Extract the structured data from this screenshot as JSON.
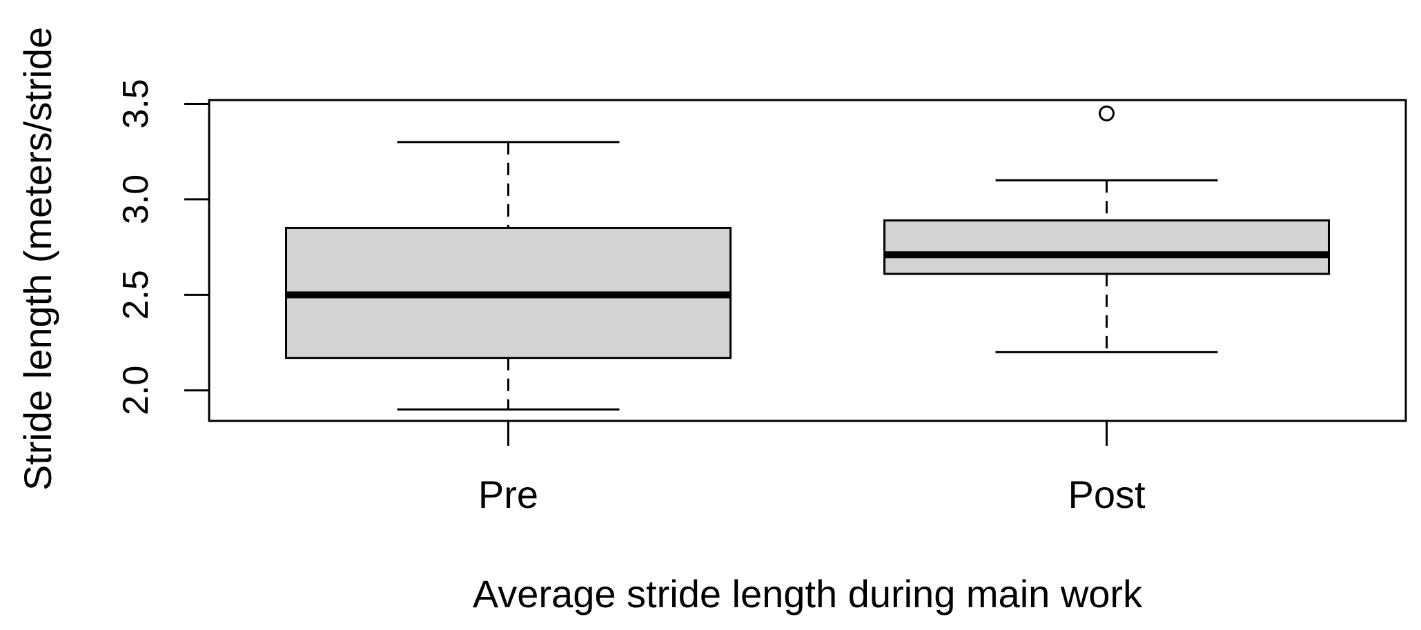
{
  "chart_data": {
    "type": "boxplot",
    "title": "",
    "xlabel": "Average stride length during main work",
    "ylabel": "Stride length (meters/stride",
    "ylim": [
      1.84,
      3.52
    ],
    "yticks": [
      2.0,
      2.5,
      3.0,
      3.5
    ],
    "ytick_labels": [
      "2.0",
      "2.5",
      "3.0",
      "3.5"
    ],
    "grid": false,
    "categories": [
      "Pre",
      "Post"
    ],
    "boxes": [
      {
        "label": "Pre",
        "whisker_low": 1.9,
        "q1": 2.17,
        "median": 2.5,
        "q3": 2.85,
        "whisker_high": 3.3,
        "outliers": []
      },
      {
        "label": "Post",
        "whisker_low": 2.2,
        "q1": 2.61,
        "median": 2.71,
        "q3": 2.89,
        "whisker_high": 3.1,
        "outliers": [
          3.45
        ]
      }
    ],
    "colors": {
      "box_fill": "#d3d3d3",
      "stroke": "#000000",
      "background": "#ffffff"
    }
  }
}
